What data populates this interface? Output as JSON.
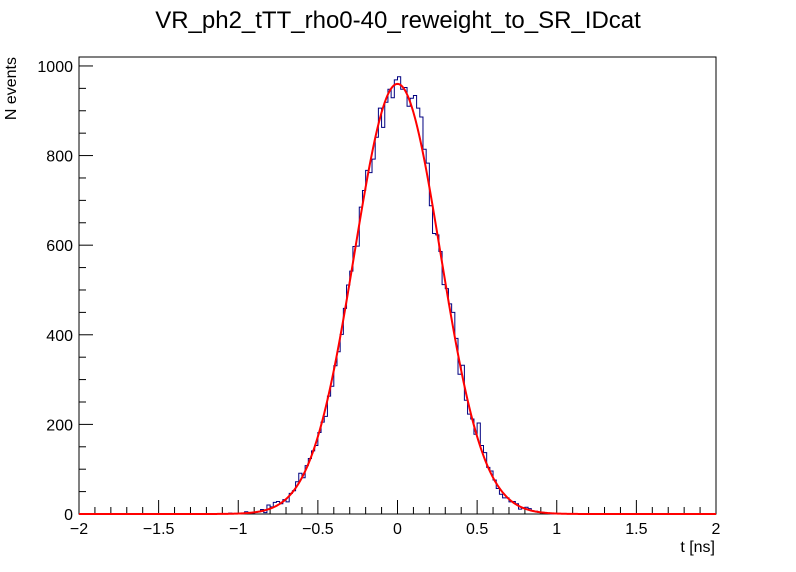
{
  "chart_data": {
    "type": "histogram",
    "title": "VR_ph2_tTT_rho0-40_reweight_to_SR_IDcat",
    "xlabel": "t [ns]",
    "ylabel": "N events",
    "xlim": [
      -2,
      2
    ],
    "ylim": [
      0,
      1020
    ],
    "x_ticks": [
      -2,
      -1.5,
      -1,
      -0.5,
      0,
      0.5,
      1,
      1.5,
      2
    ],
    "x_tick_labels": [
      "−2",
      "−1.5",
      "−1",
      "−0.5",
      "0",
      "0.5",
      "1",
      "1.5",
      "2"
    ],
    "y_ticks": [
      0,
      200,
      400,
      600,
      800,
      1000
    ],
    "y_tick_labels": [
      "0",
      "200",
      "400",
      "600",
      "800",
      "1000"
    ],
    "bin_width": 0.02,
    "series": [
      {
        "name": "histogram",
        "kind": "step",
        "color": "#000080",
        "bin_centers_and_counts_note": "approximate Gaussian-shaped counts read from plot",
        "amplitude": 960,
        "mean": 0.0,
        "sigma": 0.27,
        "noise_seed": 7
      },
      {
        "name": "gaussian fit",
        "kind": "line",
        "color": "#ff0000",
        "amplitude": 960,
        "mean": 0.0,
        "sigma": 0.27
      }
    ]
  }
}
